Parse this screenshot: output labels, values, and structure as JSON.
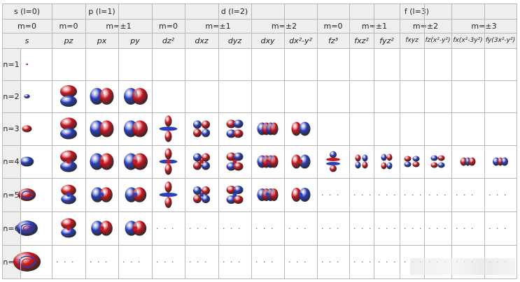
{
  "header_top": [
    {
      "text": "s (l=0)",
      "span": 1
    },
    {
      "text": "p (l=1)",
      "span": 3
    },
    {
      "text": "d (l=2)",
      "span": 5
    },
    {
      "text": "f (l=3)",
      "span": 7
    }
  ],
  "header_m": [
    {
      "text": "m=0",
      "span": 1
    },
    {
      "text": "m=0",
      "span": 1
    },
    {
      "text": "m=±1",
      "span": 2
    },
    {
      "text": "m=0",
      "span": 1
    },
    {
      "text": "m=±1",
      "span": 2
    },
    {
      "text": "m=±2",
      "span": 2
    },
    {
      "text": "m=0",
      "span": 1
    },
    {
      "text": "m=±1",
      "span": 2
    },
    {
      "text": "m=±2",
      "span": 2
    },
    {
      "text": "m=±3",
      "span": 2
    }
  ],
  "orbital_names": [
    "s",
    "pz",
    "px",
    "py",
    "dz²",
    "dxz",
    "dyz",
    "dxy",
    "dx²-y²",
    "fz³",
    "fxz²",
    "fyz²",
    "fxyz",
    "fz(x²-y²)",
    "fx(x²-3y²)",
    "fy(3x²-y²)"
  ],
  "rows": [
    "n=1",
    "n=2",
    "n=3",
    "n=4",
    "n=5",
    "n=6",
    "n=7"
  ],
  "ellipsis": "· · ·",
  "colors": {
    "positive": "#c81820",
    "negative": "#2b3fb8",
    "header_bg": "#eeeeee",
    "grid": "#b8b8b8"
  },
  "cells": [
    [
      "s",
      null,
      null,
      null,
      null,
      null,
      null,
      null,
      null,
      null,
      null,
      null,
      null,
      null,
      null,
      null
    ],
    [
      "s",
      "pz",
      "px",
      "py",
      null,
      null,
      null,
      null,
      null,
      null,
      null,
      null,
      null,
      null,
      null,
      null
    ],
    [
      "s",
      "pz",
      "px",
      "py",
      "dz2",
      "dxz",
      "dyz",
      "dxy",
      "dx2y2",
      null,
      null,
      null,
      null,
      null,
      null,
      null
    ],
    [
      "s",
      "pz",
      "px",
      "py",
      "dz2",
      "dxz",
      "dyz",
      "dxy",
      "dx2y2",
      "fz3",
      "fxz2",
      "fyz2",
      "fxyz",
      "fzx2y2",
      "fx",
      "fy"
    ],
    [
      "s",
      "pz",
      "px",
      "py",
      "dz2",
      "dxz",
      "dyz",
      "dxy",
      "dx2y2",
      "...",
      "...",
      "...",
      "...",
      "...",
      "...",
      "..."
    ],
    [
      "s",
      "pz",
      "px",
      "py",
      "...",
      "...",
      "...",
      "...",
      "...",
      "...",
      "...",
      "...",
      "...",
      "...",
      "...",
      "..."
    ],
    [
      "s",
      "...",
      "...",
      "...",
      "...",
      "...",
      "...",
      "...",
      "...",
      "...",
      "...",
      "...",
      "...",
      "...",
      "...",
      "..."
    ]
  ]
}
